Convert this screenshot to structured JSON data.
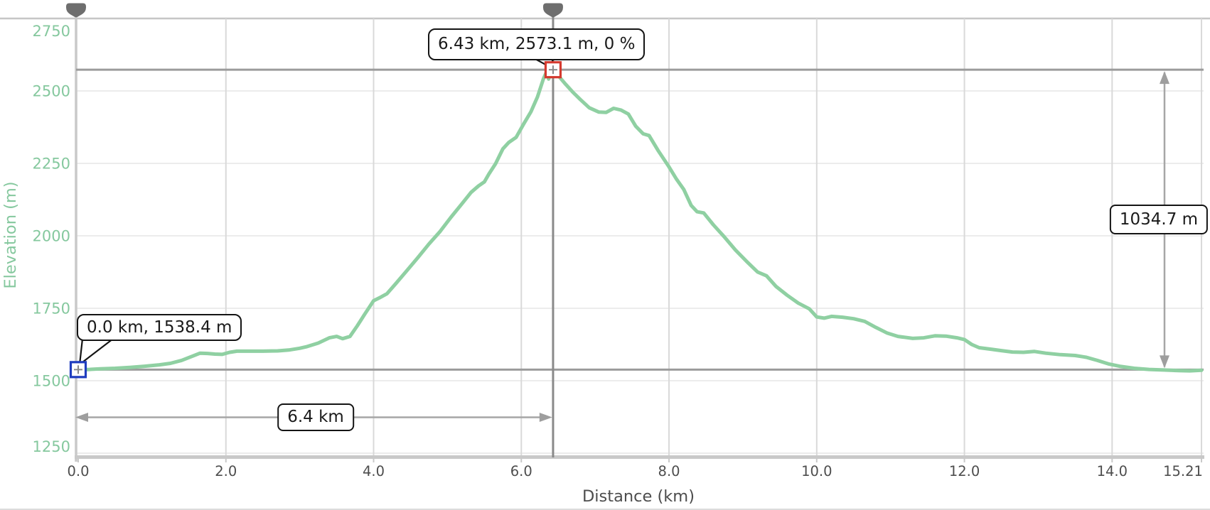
{
  "page": {
    "background": "#ffffff"
  },
  "chart_data": {
    "type": "line",
    "title": "",
    "xlabel": "Distance (km)",
    "ylabel": "Elevation (m)",
    "xlim": [
      0,
      15.21
    ],
    "ylim": [
      1250,
      2750
    ],
    "grid": true,
    "legend": "none",
    "x_ticks": [
      {
        "value": 0,
        "label": "0.0"
      },
      {
        "value": 2,
        "label": "2.0"
      },
      {
        "value": 4,
        "label": "4.0"
      },
      {
        "value": 6,
        "label": "6.0"
      },
      {
        "value": 8,
        "label": "8.0"
      },
      {
        "value": 10,
        "label": "10.0"
      },
      {
        "value": 12,
        "label": "12.0"
      },
      {
        "value": 14,
        "label": "14.0"
      },
      {
        "value": 15.21,
        "label": "15.21"
      }
    ],
    "y_ticks": [
      {
        "value": 1250,
        "label": "1250"
      },
      {
        "value": 1500,
        "label": "1500"
      },
      {
        "value": 1750,
        "label": "1750"
      },
      {
        "value": 2000,
        "label": "2000"
      },
      {
        "value": 2250,
        "label": "2250"
      },
      {
        "value": 2500,
        "label": "2500"
      },
      {
        "value": 2750,
        "label": "2750"
      }
    ],
    "series": [
      {
        "name": "elevation-profile",
        "color": "#8fd0a2",
        "points": [
          [
            0.0,
            1538.4
          ],
          [
            0.15,
            1539
          ],
          [
            0.3,
            1541
          ],
          [
            0.5,
            1543
          ],
          [
            0.7,
            1546
          ],
          [
            0.9,
            1550
          ],
          [
            1.1,
            1555
          ],
          [
            1.25,
            1560
          ],
          [
            1.4,
            1570
          ],
          [
            1.55,
            1585
          ],
          [
            1.65,
            1595
          ],
          [
            1.75,
            1594
          ],
          [
            1.85,
            1592
          ],
          [
            1.95,
            1591
          ],
          [
            2.05,
            1598
          ],
          [
            2.15,
            1602
          ],
          [
            2.3,
            1602
          ],
          [
            2.5,
            1602
          ],
          [
            2.7,
            1603
          ],
          [
            2.85,
            1606
          ],
          [
            3.0,
            1612
          ],
          [
            3.1,
            1618
          ],
          [
            3.25,
            1630
          ],
          [
            3.4,
            1648
          ],
          [
            3.5,
            1653
          ],
          [
            3.58,
            1645
          ],
          [
            3.68,
            1653
          ],
          [
            3.78,
            1690
          ],
          [
            3.88,
            1730
          ],
          [
            4.0,
            1776
          ],
          [
            4.08,
            1786
          ],
          [
            4.18,
            1800
          ],
          [
            4.3,
            1835
          ],
          [
            4.45,
            1880
          ],
          [
            4.6,
            1925
          ],
          [
            4.75,
            1972
          ],
          [
            4.9,
            2015
          ],
          [
            5.05,
            2065
          ],
          [
            5.2,
            2112
          ],
          [
            5.32,
            2150
          ],
          [
            5.42,
            2172
          ],
          [
            5.5,
            2186
          ],
          [
            5.56,
            2213
          ],
          [
            5.65,
            2248
          ],
          [
            5.75,
            2300
          ],
          [
            5.83,
            2322
          ],
          [
            5.93,
            2340
          ],
          [
            6.03,
            2385
          ],
          [
            6.13,
            2428
          ],
          [
            6.22,
            2480
          ],
          [
            6.3,
            2542
          ],
          [
            6.34,
            2565
          ],
          [
            6.37,
            2541
          ],
          [
            6.41,
            2570
          ],
          [
            6.43,
            2573.1
          ],
          [
            6.5,
            2553
          ],
          [
            6.6,
            2523
          ],
          [
            6.7,
            2495
          ],
          [
            6.8,
            2470
          ],
          [
            6.92,
            2442
          ],
          [
            7.05,
            2427
          ],
          [
            7.15,
            2426
          ],
          [
            7.25,
            2440
          ],
          [
            7.35,
            2434
          ],
          [
            7.45,
            2420
          ],
          [
            7.55,
            2378
          ],
          [
            7.65,
            2352
          ],
          [
            7.73,
            2346
          ],
          [
            7.85,
            2295
          ],
          [
            8.0,
            2238
          ],
          [
            8.1,
            2196
          ],
          [
            8.2,
            2160
          ],
          [
            8.3,
            2105
          ],
          [
            8.38,
            2083
          ],
          [
            8.47,
            2079
          ],
          [
            8.6,
            2038
          ],
          [
            8.75,
            1996
          ],
          [
            8.9,
            1951
          ],
          [
            9.05,
            1912
          ],
          [
            9.2,
            1875
          ],
          [
            9.32,
            1862
          ],
          [
            9.45,
            1825
          ],
          [
            9.6,
            1795
          ],
          [
            9.75,
            1768
          ],
          [
            9.9,
            1748
          ],
          [
            10.0,
            1720
          ],
          [
            10.1,
            1716
          ],
          [
            10.2,
            1722
          ],
          [
            10.35,
            1719
          ],
          [
            10.5,
            1714
          ],
          [
            10.65,
            1705
          ],
          [
            10.8,
            1684
          ],
          [
            10.95,
            1665
          ],
          [
            11.1,
            1653
          ],
          [
            11.3,
            1646
          ],
          [
            11.45,
            1648
          ],
          [
            11.6,
            1655
          ],
          [
            11.75,
            1654
          ],
          [
            11.9,
            1648
          ],
          [
            12.0,
            1642
          ],
          [
            12.1,
            1625
          ],
          [
            12.2,
            1614
          ],
          [
            12.35,
            1609
          ],
          [
            12.5,
            1604
          ],
          [
            12.65,
            1599
          ],
          [
            12.8,
            1598
          ],
          [
            12.95,
            1601
          ],
          [
            13.1,
            1595
          ],
          [
            13.3,
            1590
          ],
          [
            13.5,
            1587
          ],
          [
            13.65,
            1581
          ],
          [
            13.8,
            1570
          ],
          [
            13.95,
            1558
          ],
          [
            14.1,
            1550
          ],
          [
            14.3,
            1543
          ],
          [
            14.5,
            1539
          ],
          [
            14.7,
            1537
          ],
          [
            14.9,
            1535
          ],
          [
            15.05,
            1534
          ],
          [
            15.21,
            1536
          ]
        ]
      }
    ],
    "markers": [
      {
        "id": "start-point",
        "km": 0.0,
        "elevation_m": 1538.4,
        "color": "#1f3dbf",
        "label": "0.0 km, 1538.4 m"
      },
      {
        "id": "peak-point",
        "km": 6.43,
        "elevation_m": 2573.1,
        "color": "#d43a2f",
        "label": "6.43 km, 2573.1 m, 0 %"
      }
    ],
    "measurements": [
      {
        "id": "distance-span",
        "label": "6.4 km",
        "from_km": 0.0,
        "to_km": 6.4
      },
      {
        "id": "elevation-span",
        "label": "1034.7 m",
        "from_elevation_m": 1538.4,
        "to_elevation_m": 2573.1
      }
    ],
    "reference_lines": {
      "horizontal_m": [
        2573.1,
        1538.4
      ],
      "vertical_km": [
        6.43
      ]
    },
    "range_pins_km": [
      0.0,
      6.43
    ],
    "colors": {
      "curve": "#8fd0a2",
      "y_tick_text": "#85c89e",
      "x_tick_text": "#4d4d4d",
      "grid_h": "#ececec",
      "grid_v": "#d9d9d9",
      "grid_top": "#c6c6c6",
      "axis": "#c9c9c9",
      "reference_line": "#9b9b9b",
      "marker_line": "#8a8a8a",
      "arrow": "#a6a6a6",
      "arrow_head": "#9e9e9e",
      "pin": "#6e6e6e",
      "callout_border": "#141414",
      "callout_bg": "#ffffff"
    }
  }
}
